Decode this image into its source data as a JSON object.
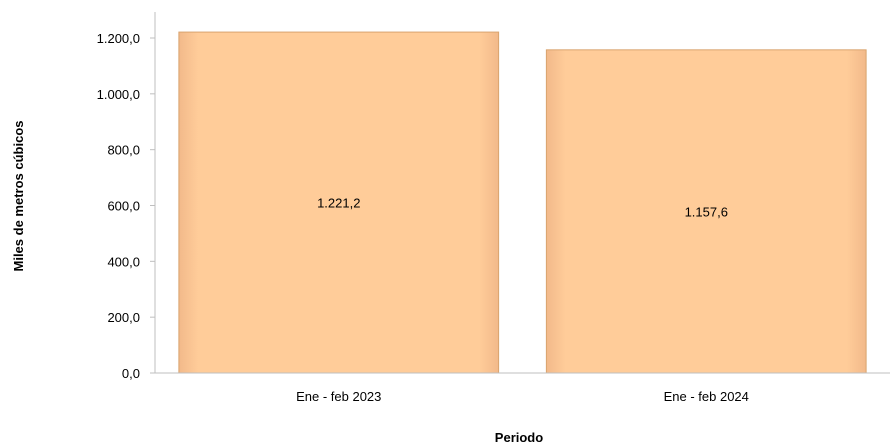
{
  "chart_data": {
    "type": "bar",
    "categories": [
      "Ene - feb 2023",
      "Ene - feb 2024"
    ],
    "values": [
      1221.2,
      1157.6
    ],
    "data_labels": [
      "1.221,2",
      "1.157,6"
    ],
    "xlabel": "Periodo",
    "ylabel": "Miles de metros cúbicos",
    "ylim": [
      0,
      1200
    ],
    "yticks": [
      0,
      200,
      400,
      600,
      800,
      1000,
      1200
    ],
    "ytick_labels": [
      "0,0",
      "200,0",
      "400,0",
      "600,0",
      "800,0",
      "1.000,0",
      "1.200,0"
    ],
    "bar_color": "#FFCC99",
    "bar_edge_color": "#D9A46E",
    "grid": false,
    "legend": "none"
  }
}
